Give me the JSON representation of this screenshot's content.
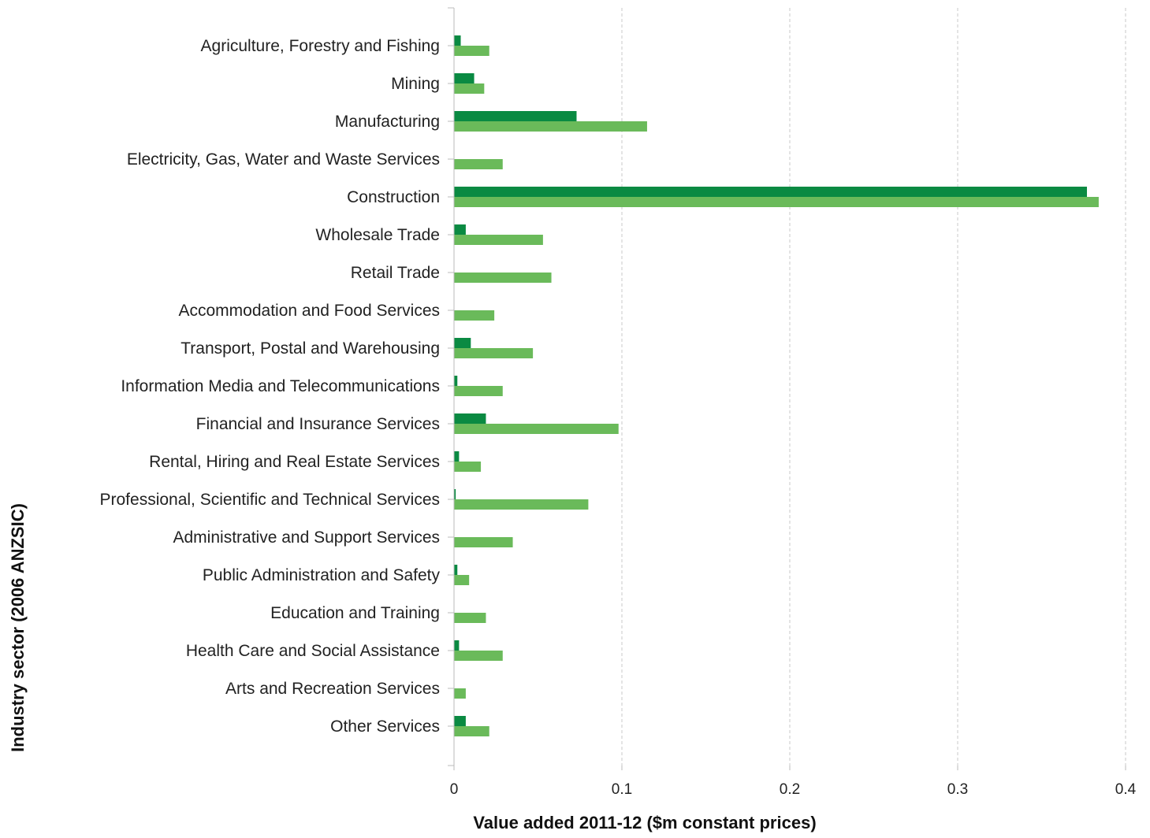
{
  "chart_data": {
    "type": "bar",
    "orientation": "horizontal",
    "xlabel": "Value added 2011-12 ($m constant prices)",
    "ylabel": "Industry sector (2006 ANZSIC)",
    "xlim": [
      0,
      0.4
    ],
    "x_ticks": [
      "0",
      "0.1",
      "0.2",
      "0.3",
      "0.4"
    ],
    "grid": "vertical dashed",
    "legend": "none",
    "categories": [
      "Agriculture, Forestry and Fishing",
      "Mining",
      "Manufacturing",
      "Electricity, Gas, Water and Waste Services",
      "Construction",
      "Wholesale Trade",
      "Retail Trade",
      "Accommodation and Food Services",
      "Transport, Postal and Warehousing",
      "Information Media and Telecommunications",
      "Financial and Insurance Services",
      "Rental, Hiring and Real Estate Services",
      "Professional, Scientific and Technical Services",
      "Administrative and Support Services",
      "Public Administration and Safety",
      "Education and Training",
      "Health Care and Social Assistance",
      "Arts and Recreation Services",
      "Other Services"
    ],
    "series": [
      {
        "color": "#0a8a42",
        "values": [
          0.004,
          0.012,
          0.073,
          0.0,
          0.377,
          0.007,
          0.0,
          0.0,
          0.01,
          0.002,
          0.019,
          0.003,
          0.001,
          0.0,
          0.002,
          0.0,
          0.003,
          0.0,
          0.007
        ]
      },
      {
        "color": "#6aba5a",
        "values": [
          0.021,
          0.018,
          0.115,
          0.029,
          0.384,
          0.053,
          0.058,
          0.024,
          0.047,
          0.029,
          0.098,
          0.016,
          0.08,
          0.035,
          0.009,
          0.019,
          0.029,
          0.007,
          0.021
        ]
      }
    ]
  }
}
